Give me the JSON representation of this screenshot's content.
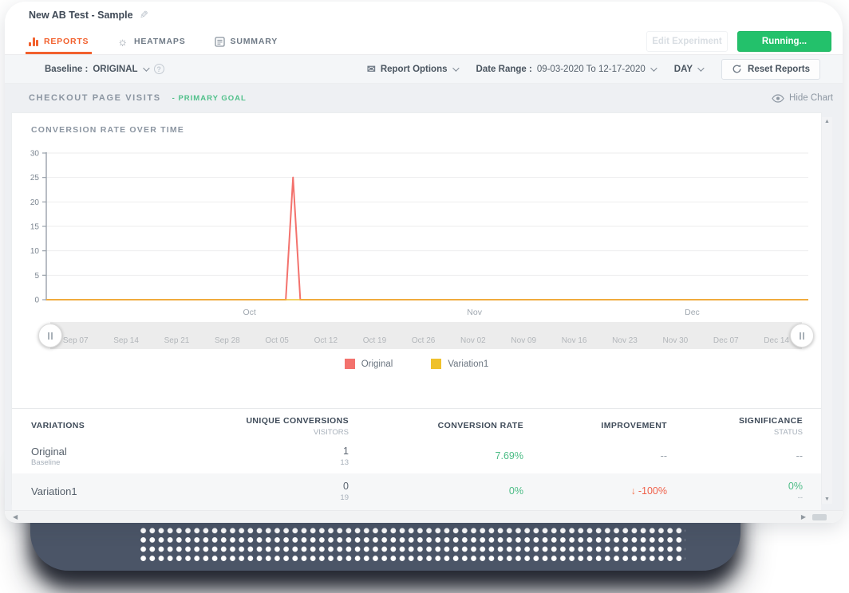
{
  "window": {
    "title": "New AB Test - Sample"
  },
  "tabs": {
    "reports": "REPORTS",
    "heatmaps": "HEATMAPS",
    "summary": "SUMMARY"
  },
  "actions": {
    "edit_experiment": "Edit Experiment",
    "running": "Running..."
  },
  "filter_bar": {
    "baseline_label": "Baseline :",
    "baseline_value": "ORIGINAL",
    "report_options": "Report Options",
    "date_range_label": "Date Range :",
    "date_range_value": "09-03-2020 To 12-17-2020",
    "interval": "DAY",
    "reset_reports": "Reset Reports"
  },
  "goal": {
    "name": "CHECKOUT PAGE VISITS",
    "badge": "- PRIMARY GOAL",
    "hide_chart": "Hide Chart"
  },
  "chart_data": {
    "type": "line",
    "title": "CONVERSION RATE OVER TIME",
    "ylim": [
      0,
      30
    ],
    "yticks": [
      0,
      5,
      10,
      15,
      20,
      25,
      30
    ],
    "grid": "horizontal",
    "legend_position": "bottom-center",
    "x_start": "09-03-2020",
    "x_end": "12-17-2020",
    "x_domain_days": 105,
    "month_ticks": [
      {
        "label": "Oct",
        "day": 28
      },
      {
        "label": "Nov",
        "day": 59
      },
      {
        "label": "Dec",
        "day": 89
      }
    ],
    "series": [
      {
        "name": "Original",
        "color": "#f3726d",
        "points": [
          {
            "date": "Sep 03",
            "day": 0,
            "value": 0
          },
          {
            "date": "Oct 06",
            "day": 33,
            "value": 0
          },
          {
            "date": "Oct 07",
            "day": 34,
            "value": 25
          },
          {
            "date": "Oct 08",
            "day": 35,
            "value": 0
          },
          {
            "date": "Dec 17",
            "day": 105,
            "value": 0
          }
        ]
      },
      {
        "name": "Variation1",
        "color": "#efc12c",
        "points": [
          {
            "date": "Sep 03",
            "day": 0,
            "value": 0
          },
          {
            "date": "Dec 17",
            "day": 105,
            "value": 0
          }
        ]
      }
    ],
    "slider_dates": [
      "Sep 07",
      "Sep 14",
      "Sep 21",
      "Sep 28",
      "Oct 05",
      "Oct 12",
      "Oct 19",
      "Oct 26",
      "Nov 02",
      "Nov 09",
      "Nov 16",
      "Nov 23",
      "Nov 30",
      "Dec 07",
      "Dec 14"
    ]
  },
  "table": {
    "columns": [
      {
        "label": "VARIATIONS",
        "sub": ""
      },
      {
        "label": "UNIQUE CONVERSIONS",
        "sub": "VISITORS"
      },
      {
        "label": "CONVERSION RATE",
        "sub": ""
      },
      {
        "label": "IMPROVEMENT",
        "sub": ""
      },
      {
        "label": "SIGNIFICANCE",
        "sub": "STATUS"
      }
    ],
    "rows": [
      {
        "name": "Original",
        "sub": "Baseline",
        "conversions": "1",
        "visitors": "13",
        "rate": "7.69%",
        "improvement_arrow": "",
        "improvement": "--",
        "significance": "--",
        "significance_sub": ""
      },
      {
        "name": "Variation1",
        "sub": "",
        "conversions": "0",
        "visitors": "19",
        "rate": "0%",
        "improvement_arrow": "↓",
        "improvement": "-100%",
        "significance": "0%",
        "significance_sub": "--"
      }
    ]
  },
  "colors": {
    "accent_orange": "#f2612e",
    "running_green": "#23c16b",
    "positive_green": "#4bbc85",
    "negative_red": "#f0604a",
    "series_red": "#f3726d",
    "series_yellow": "#efc12c"
  }
}
